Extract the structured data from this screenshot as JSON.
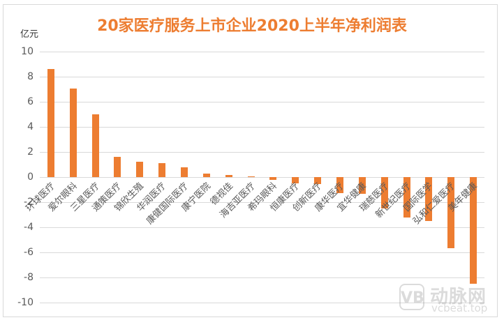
{
  "title": "20家医疗服务上市企业2020上半年净利润表",
  "unit_label": "亿元",
  "watermark": {
    "logo": "VB",
    "brand": "动脉网",
    "site": "vcbeat.top"
  },
  "colors": {
    "bar": "#ed7d31",
    "title": "#ed7d31",
    "grid": "#d9d9d9"
  },
  "chart_data": {
    "type": "bar",
    "title": "20家医疗服务上市企业2020上半年净利润表",
    "xlabel": "",
    "ylabel": "亿元",
    "ylim": [
      -10,
      10
    ],
    "yticks": [
      10,
      8,
      6,
      4,
      2,
      0,
      -2,
      -4,
      -6,
      -8,
      -10
    ],
    "grid": true,
    "legend": "none",
    "categories": [
      "环球医疗",
      "爱尔眼科",
      "三星医疗",
      "通策医疗",
      "锦欣生殖",
      "华润医疗",
      "康健国际医疗",
      "康宁医院",
      "德视佳",
      "海吉亚医疗",
      "希玛眼科",
      "恒康医疗",
      "创新医疗",
      "康华医疗",
      "宜华健康",
      "瑞慈医疗",
      "新世纪医疗",
      "国际医学",
      "弘和仁爱医疗",
      "美年健康"
    ],
    "values": [
      8.63,
      7.07,
      5.02,
      1.63,
      1.24,
      1.13,
      0.8,
      0.3,
      0.18,
      0.08,
      -0.19,
      -0.49,
      -0.54,
      -1.25,
      -1.3,
      -2.5,
      -3.2,
      -3.5,
      -5.65,
      -8.5
    ]
  }
}
